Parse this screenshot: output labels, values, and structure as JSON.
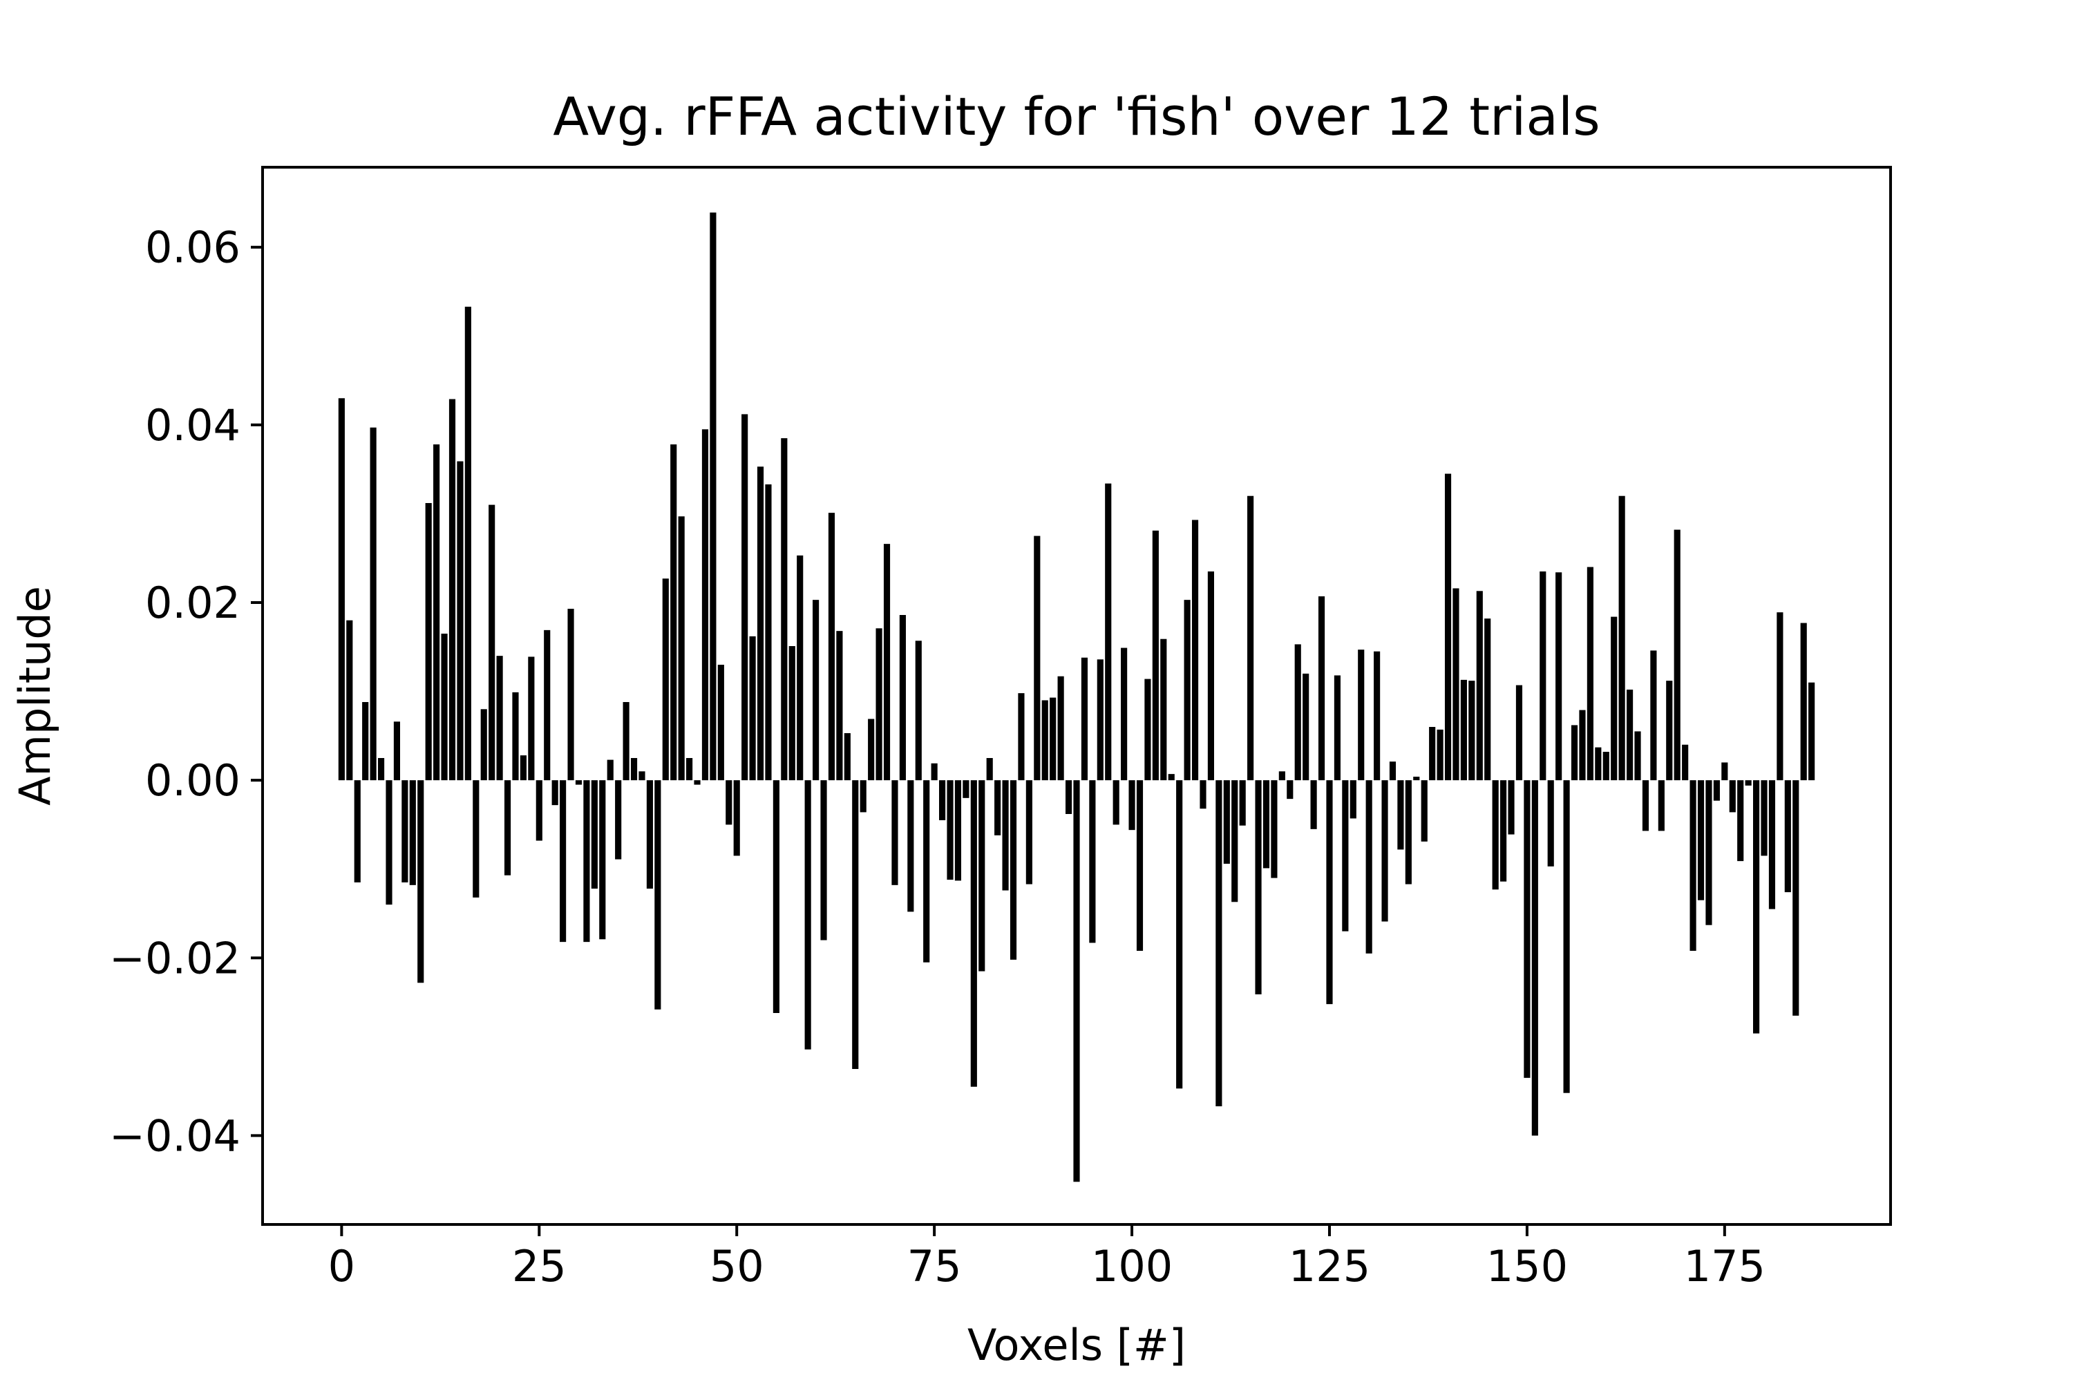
{
  "chart_data": {
    "type": "bar",
    "title": "Avg. rFFA activity for 'fish' over 12 trials",
    "xlabel": "Voxels [#]",
    "ylabel": "Amplitude",
    "xlim": [
      -10,
      196
    ],
    "ylim": [
      -0.05,
      0.069
    ],
    "grid": false,
    "bar_color": "#000000",
    "x_ticks": [
      0,
      25,
      50,
      75,
      100,
      125,
      150,
      175
    ],
    "x_tick_labels": [
      "0",
      "25",
      "50",
      "75",
      "100",
      "125",
      "150",
      "175"
    ],
    "y_ticks": [
      -0.04,
      -0.02,
      0.0,
      0.02,
      0.04,
      0.06
    ],
    "y_tick_labels": [
      "−0.04",
      "−0.02",
      "0.00",
      "0.02",
      "0.04",
      "0.06"
    ],
    "x": [
      0,
      1,
      2,
      3,
      4,
      5,
      6,
      7,
      8,
      9,
      10,
      11,
      12,
      13,
      14,
      15,
      16,
      17,
      18,
      19,
      20,
      21,
      22,
      23,
      24,
      25,
      26,
      27,
      28,
      29,
      30,
      31,
      32,
      33,
      34,
      35,
      36,
      37,
      38,
      39,
      40,
      41,
      42,
      43,
      44,
      45,
      46,
      47,
      48,
      49,
      50,
      51,
      52,
      53,
      54,
      55,
      56,
      57,
      58,
      59,
      60,
      61,
      62,
      63,
      64,
      65,
      66,
      67,
      68,
      69,
      70,
      71,
      72,
      73,
      74,
      75,
      76,
      77,
      78,
      79,
      80,
      81,
      82,
      83,
      84,
      85,
      86,
      87,
      88,
      89,
      90,
      91,
      92,
      93,
      94,
      95,
      96,
      97,
      98,
      99,
      100,
      101,
      102,
      103,
      104,
      105,
      106,
      107,
      108,
      109,
      110,
      111,
      112,
      113,
      114,
      115,
      116,
      117,
      118,
      119,
      120,
      121,
      122,
      123,
      124,
      125,
      126,
      127,
      128,
      129,
      130,
      131,
      132,
      133,
      134,
      135,
      136,
      137,
      138,
      139,
      140,
      141,
      142,
      143,
      144,
      145,
      146,
      147,
      148,
      149,
      150,
      151,
      152,
      153,
      154,
      155,
      156,
      157,
      158,
      159,
      160,
      161,
      162,
      163,
      164,
      165,
      166,
      167,
      168,
      169,
      170,
      171,
      172,
      173,
      174,
      175,
      176,
      177,
      178,
      179,
      180,
      181,
      182,
      183,
      184,
      185,
      186
    ],
    "values": [
      0.043,
      0.018,
      -0.0115,
      0.0088,
      0.0397,
      0.0025,
      -0.014,
      0.0066,
      -0.0115,
      -0.0118,
      -0.0228,
      0.0312,
      0.0378,
      0.0165,
      0.0429,
      0.0359,
      0.0533,
      -0.0132,
      0.008,
      0.031,
      0.014,
      -0.0107,
      0.0099,
      0.0028,
      0.0139,
      -0.0068,
      0.0169,
      -0.0028,
      -0.0182,
      0.0193,
      -0.0005,
      -0.0182,
      -0.0122,
      -0.0179,
      0.0023,
      -0.0089,
      0.0088,
      0.0025,
      0.001,
      -0.0122,
      -0.0258,
      0.0227,
      0.0378,
      0.0297,
      0.0025,
      -0.0005,
      0.0395,
      0.0639,
      0.013,
      -0.005,
      -0.0085,
      0.0412,
      0.0162,
      0.0353,
      0.0333,
      -0.0262,
      0.0385,
      0.0151,
      0.0253,
      -0.0303,
      0.0203,
      -0.018,
      0.0301,
      0.0168,
      0.0053,
      -0.0325,
      -0.0036,
      0.0069,
      0.0171,
      0.0266,
      -0.0118,
      0.0186,
      -0.0148,
      0.0157,
      -0.0205,
      0.0019,
      -0.0045,
      -0.0112,
      -0.0113,
      -0.002,
      -0.0345,
      -0.0215,
      0.0025,
      -0.0062,
      -0.0124,
      -0.0202,
      0.0098,
      -0.0117,
      0.0275,
      0.009,
      0.0093,
      0.0117,
      -0.0038,
      -0.0452,
      0.0138,
      -0.0183,
      0.0136,
      0.0334,
      -0.005,
      0.0149,
      -0.0056,
      -0.0192,
      0.0114,
      0.0281,
      0.0159,
      0.0007,
      -0.0347,
      0.0203,
      0.0293,
      -0.0032,
      0.0235,
      -0.0367,
      -0.0094,
      -0.0137,
      -0.0051,
      0.032,
      -0.0241,
      -0.0099,
      -0.011,
      0.001,
      -0.0021,
      0.0153,
      0.012,
      -0.0055,
      0.0207,
      -0.0252,
      0.0118,
      -0.017,
      -0.0043,
      0.0147,
      -0.0195,
      0.0145,
      -0.0159,
      0.0021,
      -0.0078,
      -0.0117,
      0.0004,
      -0.0069,
      0.006,
      0.0057,
      0.0345,
      0.0216,
      0.0113,
      0.0112,
      0.0213,
      0.0182,
      -0.0123,
      -0.0114,
      -0.0061,
      0.0107,
      -0.0335,
      -0.04,
      0.0235,
      -0.0097,
      0.0234,
      -0.0352,
      0.0062,
      0.0079,
      0.024,
      0.0037,
      0.0032,
      0.0184,
      0.032,
      0.0102,
      0.0055,
      -0.0057,
      0.0146,
      -0.0057,
      0.0112,
      0.0282,
      0.004,
      -0.0192,
      -0.0135,
      -0.0163,
      -0.0023,
      0.002,
      -0.0036,
      -0.0091,
      -0.0006,
      -0.0285,
      -0.0085,
      -0.0145,
      0.0189,
      -0.0126,
      -0.0265,
      0.0177,
      0.011
    ]
  }
}
